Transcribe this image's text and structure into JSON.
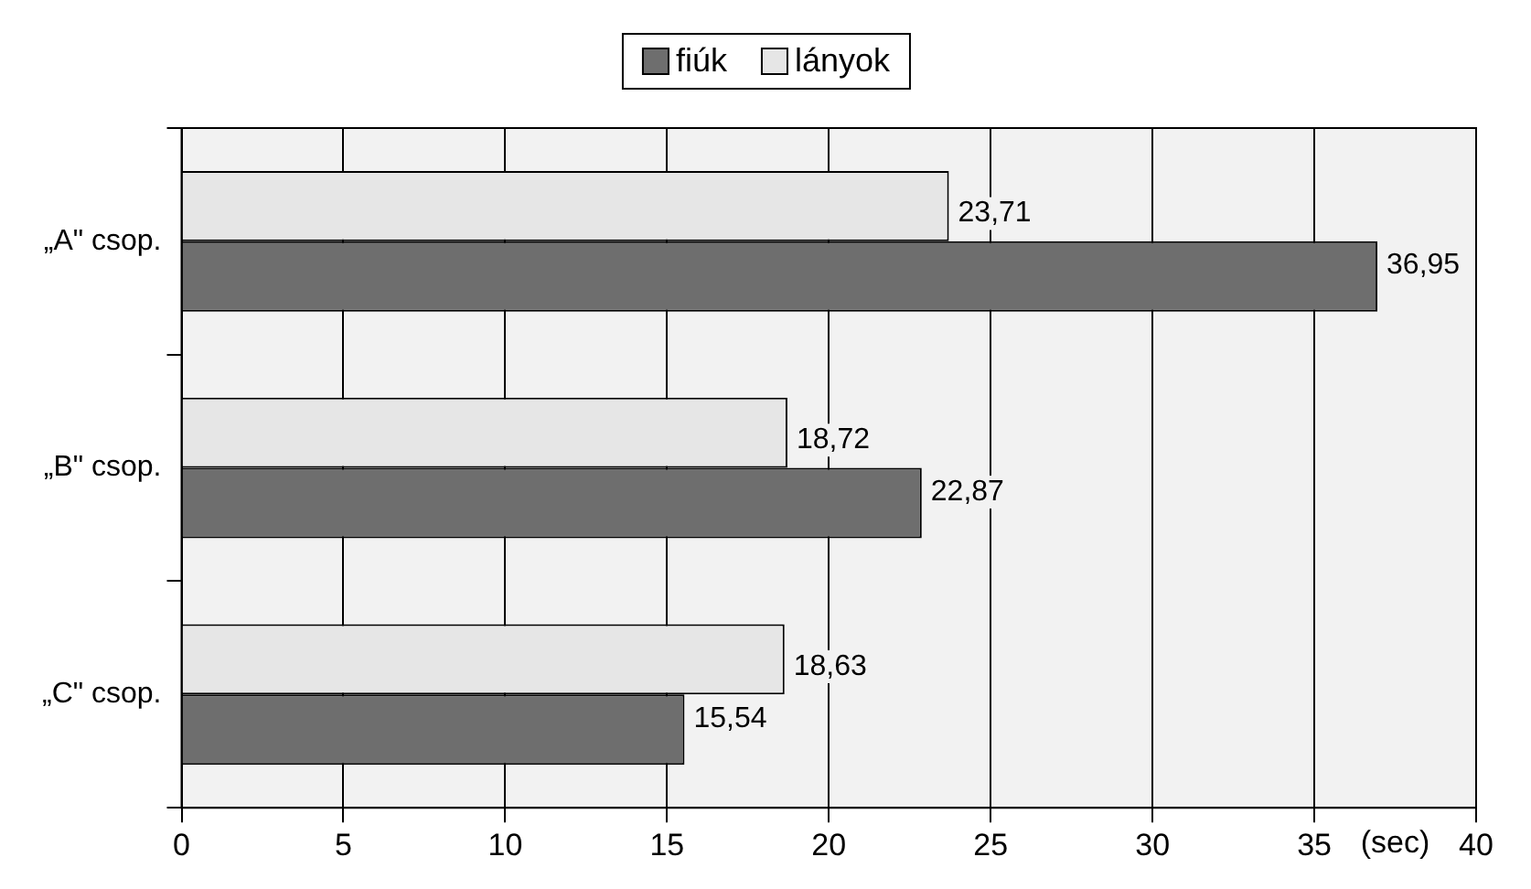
{
  "chart_data": {
    "type": "bar",
    "orientation": "horizontal",
    "xlabel": "(sec)",
    "categories": [
      "„A\" csop.",
      "„B\" csop.",
      "„C\" csop."
    ],
    "series": [
      {
        "name": "fiúk",
        "color": "#6e6e6e",
        "values": [
          36.95,
          22.87,
          15.54
        ],
        "value_labels": [
          "36,95",
          "22,87",
          "15,54"
        ]
      },
      {
        "name": "lányok",
        "color": "#e6e6e6",
        "values": [
          23.71,
          18.72,
          18.63
        ],
        "value_labels": [
          "23,71",
          "18,72",
          "18,63"
        ]
      }
    ],
    "xlim": [
      0,
      40
    ],
    "xticks": [
      0,
      5,
      10,
      15,
      20,
      25,
      30,
      35,
      40
    ],
    "grid": "x",
    "legend": "top"
  }
}
